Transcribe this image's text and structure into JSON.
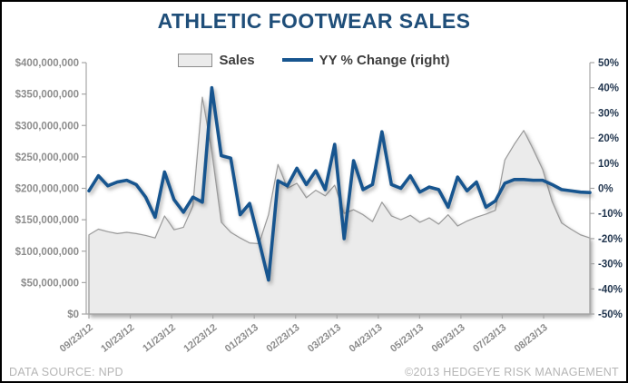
{
  "title": "ATHLETIC FOOTWEAR SALES",
  "legend": {
    "sales_label": "Sales",
    "yy_label": "YY % Change (right)"
  },
  "footer": {
    "left": "DATA SOURCE:  NPD",
    "right": "©2013 HEDGEYE RISK MANAGEMENT"
  },
  "colors": {
    "title": "#1F4E79",
    "line": "#17558f",
    "area_fill": "#ebebeb",
    "area_border": "#9a9a9a",
    "axis": "#a6a6a6",
    "left_labels": "#8d8d8d",
    "right_labels": "#22364f",
    "x_labels": "#8c8c8c"
  },
  "chart_data": {
    "type": "combo",
    "title": "ATHLETIC FOOTWEAR SALES",
    "xlabel": "",
    "grid": false,
    "legend_position": "top-center",
    "x": [
      "09/23/12",
      "09/30/12",
      "10/07/12",
      "10/14/12",
      "10/21/12",
      "10/28/12",
      "11/04/12",
      "11/11/12",
      "11/18/12",
      "11/25/12",
      "12/02/12",
      "12/09/12",
      "12/16/12",
      "12/23/12",
      "12/30/12",
      "01/06/13",
      "01/13/13",
      "01/20/13",
      "01/27/13",
      "02/03/13",
      "02/10/13",
      "02/17/13",
      "02/24/13",
      "03/03/13",
      "03/10/13",
      "03/17/13",
      "03/24/13",
      "03/31/13",
      "04/07/13",
      "04/14/13",
      "04/21/13",
      "04/28/13",
      "05/05/13",
      "05/12/13",
      "05/19/13",
      "05/26/13",
      "06/02/13",
      "06/09/13",
      "06/16/13",
      "06/23/13",
      "06/30/13",
      "07/07/13",
      "07/14/13",
      "07/21/13",
      "07/28/13",
      "08/04/13",
      "08/11/13",
      "08/18/13",
      "08/25/13",
      "09/01/13",
      "09/08/13",
      "09/15/13",
      "09/22/13",
      "09/29/13"
    ],
    "x_tick_labels": [
      "09/23/12",
      "10/23/12",
      "11/23/12",
      "12/23/12",
      "01/23/13",
      "02/23/13",
      "03/23/13",
      "04/23/13",
      "05/23/13",
      "06/23/13",
      "07/23/13",
      "08/23/13"
    ],
    "series": [
      {
        "name": "Sales",
        "type": "area",
        "axis": "left",
        "unit": "USD millions",
        "values": [
          126,
          135,
          131,
          128,
          130,
          128,
          125,
          121,
          156,
          134,
          138,
          172,
          345,
          258,
          146,
          130,
          121,
          113,
          112,
          158,
          238,
          200,
          208,
          185,
          197,
          188,
          205,
          160,
          166,
          158,
          147,
          178,
          156,
          150,
          157,
          146,
          153,
          143,
          158,
          140,
          148,
          154,
          159,
          165,
          245,
          270,
          292,
          262,
          230,
          179,
          145,
          135,
          126,
          121
        ]
      },
      {
        "name": "YY % Change (right)",
        "type": "line",
        "axis": "right",
        "unit": "percent",
        "values": [
          -1.0,
          5.0,
          1.0,
          2.5,
          3.2,
          1.5,
          -3.5,
          -11.5,
          6.5,
          -4.5,
          -9.5,
          -3.5,
          -5.5,
          40.0,
          13.0,
          12.0,
          -10.5,
          -6.0,
          -21.0,
          -36.5,
          3.0,
          1.0,
          8.0,
          1.5,
          7.0,
          -0.5,
          17.5,
          -20.0,
          11.0,
          -0.5,
          1.5,
          22.5,
          1.5,
          0.0,
          5.0,
          -1.5,
          0.5,
          -0.5,
          -7.5,
          4.5,
          -1.0,
          2.5,
          -7.5,
          -5.0,
          2.0,
          3.5,
          3.5,
          3.2,
          3.2,
          1.5,
          -0.5,
          -1.0,
          -1.5,
          -1.7
        ]
      }
    ],
    "left_axis": {
      "min_musd": 0,
      "max_musd": 400,
      "tick_values_musd": [
        400,
        350,
        300,
        250,
        200,
        150,
        100,
        50,
        0
      ],
      "tick_labels": [
        "$400,000,000",
        "$350,000,000",
        "$300,000,000",
        "$250,000,000",
        "$200,000,000",
        "$150,000,000",
        "$100,000,000",
        "$50,000,000",
        "$0"
      ]
    },
    "right_axis": {
      "min": -50,
      "max": 50,
      "tick_values": [
        50,
        40,
        30,
        20,
        10,
        0,
        -10,
        -20,
        -30,
        -40,
        -50
      ],
      "tick_labels": [
        "50%",
        "40%",
        "30%",
        "20%",
        "10%",
        "0%",
        "-10%",
        "-20%",
        "-30%",
        "-40%",
        "-50%"
      ]
    }
  }
}
